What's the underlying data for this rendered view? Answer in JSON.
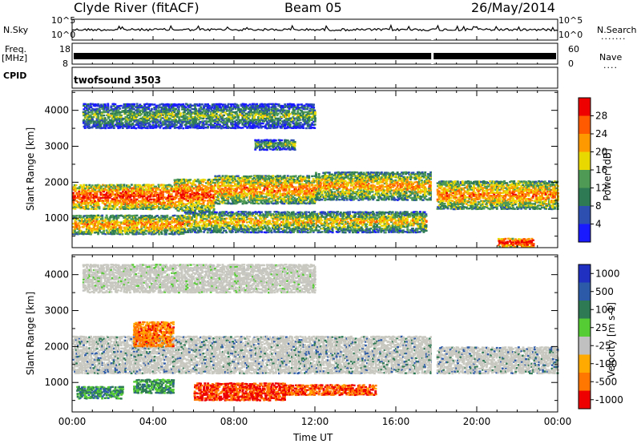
{
  "header": {
    "station": "Clyde River (fitACF)",
    "beam": "Beam 05",
    "date": "26/May/2014"
  },
  "panels": {
    "nsky": {
      "label": "N.Sky",
      "ticks": [
        "10^5",
        "10^0"
      ],
      "right_ticks": [
        "10^5",
        "10^0"
      ],
      "right_label": "N.Search",
      "right_dots": "......."
    },
    "freq": {
      "label": "Freq.",
      "unit": "[MHz]",
      "ticks": [
        "18",
        "8"
      ],
      "right_ticks": [
        "60",
        "0"
      ],
      "right_label": "Nave",
      "right_dots": "...."
    },
    "cpid": {
      "label": "CPID",
      "value": "twofsound 3503"
    }
  },
  "colors": {
    "power_scale": [
      "#1a1aff",
      "#2c4fb0",
      "#2e7a55",
      "#4f9a55",
      "#e9d800",
      "#ff9900",
      "#ff5a00",
      "#ee0000"
    ],
    "velocity_scale": [
      "#2030c0",
      "#2c5aa8",
      "#2e7a55",
      "#55cc33",
      "#c0c0c0",
      "#ffaa00",
      "#ff7700",
      "#ee0000"
    ],
    "ground_scatter": "#c8c8c0"
  },
  "chart_data": [
    {
      "type": "heatmap",
      "title": "Power",
      "xlabel": "Time UT",
      "ylabel": "Slant Range [km]",
      "x_ticks": [
        "00:00",
        "04:00",
        "08:00",
        "12:00",
        "16:00",
        "20:00",
        "00:00"
      ],
      "y_ticks": [
        "1000",
        "2000",
        "3000",
        "4000"
      ],
      "ylim": [
        180,
        4550
      ],
      "xlim_hours": [
        0,
        24
      ],
      "colorbar": {
        "label": "Power [dB]",
        "ticks": [
          "4",
          "8",
          "12",
          "16",
          "20",
          "24",
          "28"
        ]
      },
      "bands": [
        {
          "t0": 0.0,
          "t1": 5.0,
          "r0": 1250,
          "r1": 1950,
          "level": 0.75
        },
        {
          "t0": 5.0,
          "t1": 7.0,
          "r0": 1200,
          "r1": 2100,
          "level": 0.7
        },
        {
          "t0": 7.0,
          "t1": 12.0,
          "r0": 1400,
          "r1": 2200,
          "level": 0.55
        },
        {
          "t0": 12.0,
          "t1": 17.8,
          "r0": 1500,
          "r1": 2300,
          "level": 0.45
        },
        {
          "t0": 18.0,
          "t1": 24.0,
          "r0": 1250,
          "r1": 2050,
          "level": 0.55
        },
        {
          "t0": 0.0,
          "t1": 5.5,
          "r0": 550,
          "r1": 1100,
          "level": 0.5
        },
        {
          "t0": 5.5,
          "t1": 17.5,
          "r0": 600,
          "r1": 1200,
          "level": 0.35
        },
        {
          "t0": 21.0,
          "t1": 22.8,
          "r0": 200,
          "r1": 450,
          "level": 0.95
        },
        {
          "t0": 0.5,
          "t1": 12.0,
          "r0": 3500,
          "r1": 4200,
          "level": 0.08
        },
        {
          "t0": 9.0,
          "t1": 11.0,
          "r0": 2900,
          "r1": 3200,
          "level": 0.1
        }
      ]
    },
    {
      "type": "heatmap",
      "title": "Velocity",
      "xlabel": "Time UT",
      "ylabel": "Slant Range [km]",
      "x_ticks": [
        "00:00",
        "04:00",
        "08:00",
        "12:00",
        "16:00",
        "20:00",
        "00:00"
      ],
      "y_ticks": [
        "1000",
        "2000",
        "3000",
        "4000"
      ],
      "ylim": [
        180,
        4550
      ],
      "xlim_hours": [
        0,
        24
      ],
      "colorbar": {
        "label": "Velocity [m s-1]",
        "ticks": [
          "1000",
          "500",
          "100",
          "25",
          "-25",
          "-100",
          "-500",
          "-1000"
        ]
      },
      "bands": [
        {
          "t0": 0.0,
          "t1": 17.8,
          "r0": 1250,
          "r1": 2300,
          "level": 0.5,
          "ground": true
        },
        {
          "t0": 18.0,
          "t1": 24.0,
          "r0": 1250,
          "r1": 2000,
          "level": 0.5,
          "ground": true
        },
        {
          "t0": 6.0,
          "t1": 10.5,
          "r0": 500,
          "r1": 1000,
          "level": -0.8
        },
        {
          "t0": 10.5,
          "t1": 15.0,
          "r0": 650,
          "r1": 950,
          "level": -0.7
        },
        {
          "t0": 0.2,
          "t1": 2.5,
          "r0": 550,
          "r1": 900,
          "level": 0.35
        },
        {
          "t0": 3.0,
          "t1": 5.0,
          "r0": 700,
          "r1": 1100,
          "level": 0.3
        },
        {
          "t0": 3.0,
          "t1": 5.0,
          "r0": 2000,
          "r1": 2700,
          "level": -0.6
        },
        {
          "t0": 0.5,
          "t1": 12.0,
          "r0": 3500,
          "r1": 4300,
          "level": 0.0,
          "ground": true
        }
      ]
    }
  ]
}
